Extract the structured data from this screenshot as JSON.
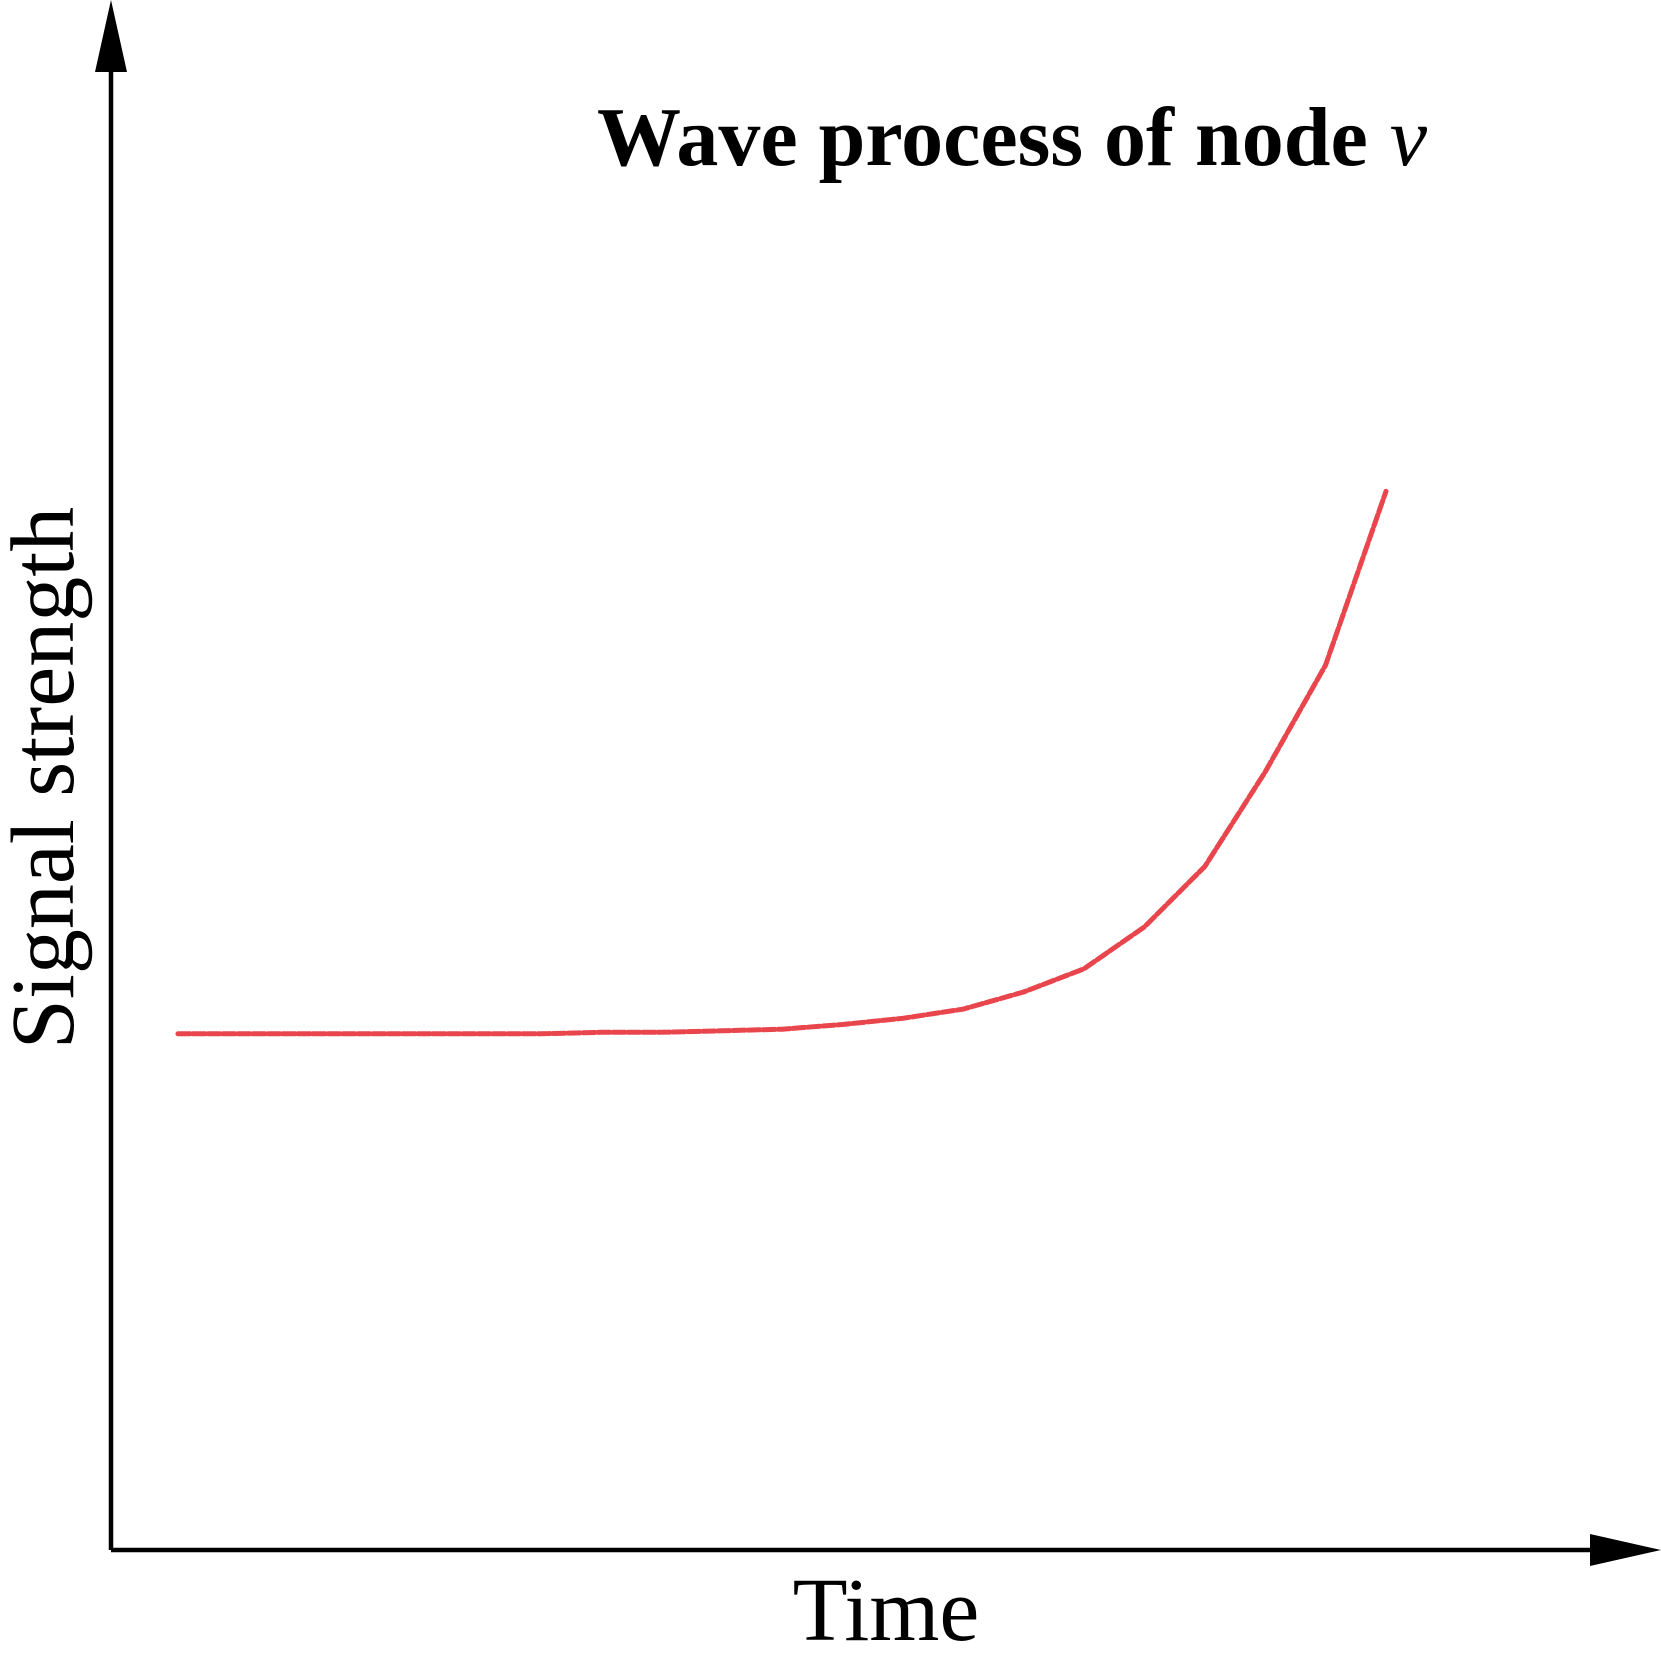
{
  "chart_data": {
    "type": "line",
    "title": "Wave process of node",
    "title_variable": "v",
    "xlabel": "Time",
    "ylabel": "Signal strength",
    "xlim": [
      0,
      1
    ],
    "ylim": [
      0,
      1
    ],
    "grid": false,
    "series": [
      {
        "color": "#e8454c",
        "style": "dashed",
        "x": [
          0.0,
          0.05,
          0.1,
          0.15,
          0.2,
          0.25,
          0.3,
          0.35,
          0.4,
          0.45,
          0.5,
          0.55,
          0.6,
          0.65,
          0.7,
          0.75,
          0.8,
          0.85,
          0.9,
          0.95,
          1.0
        ],
        "y": [
          0.333,
          0.333,
          0.333,
          0.333,
          0.333,
          0.333,
          0.333,
          0.334,
          0.334,
          0.335,
          0.336,
          0.339,
          0.343,
          0.349,
          0.36,
          0.375,
          0.402,
          0.441,
          0.502,
          0.571,
          0.683
        ]
      }
    ]
  }
}
